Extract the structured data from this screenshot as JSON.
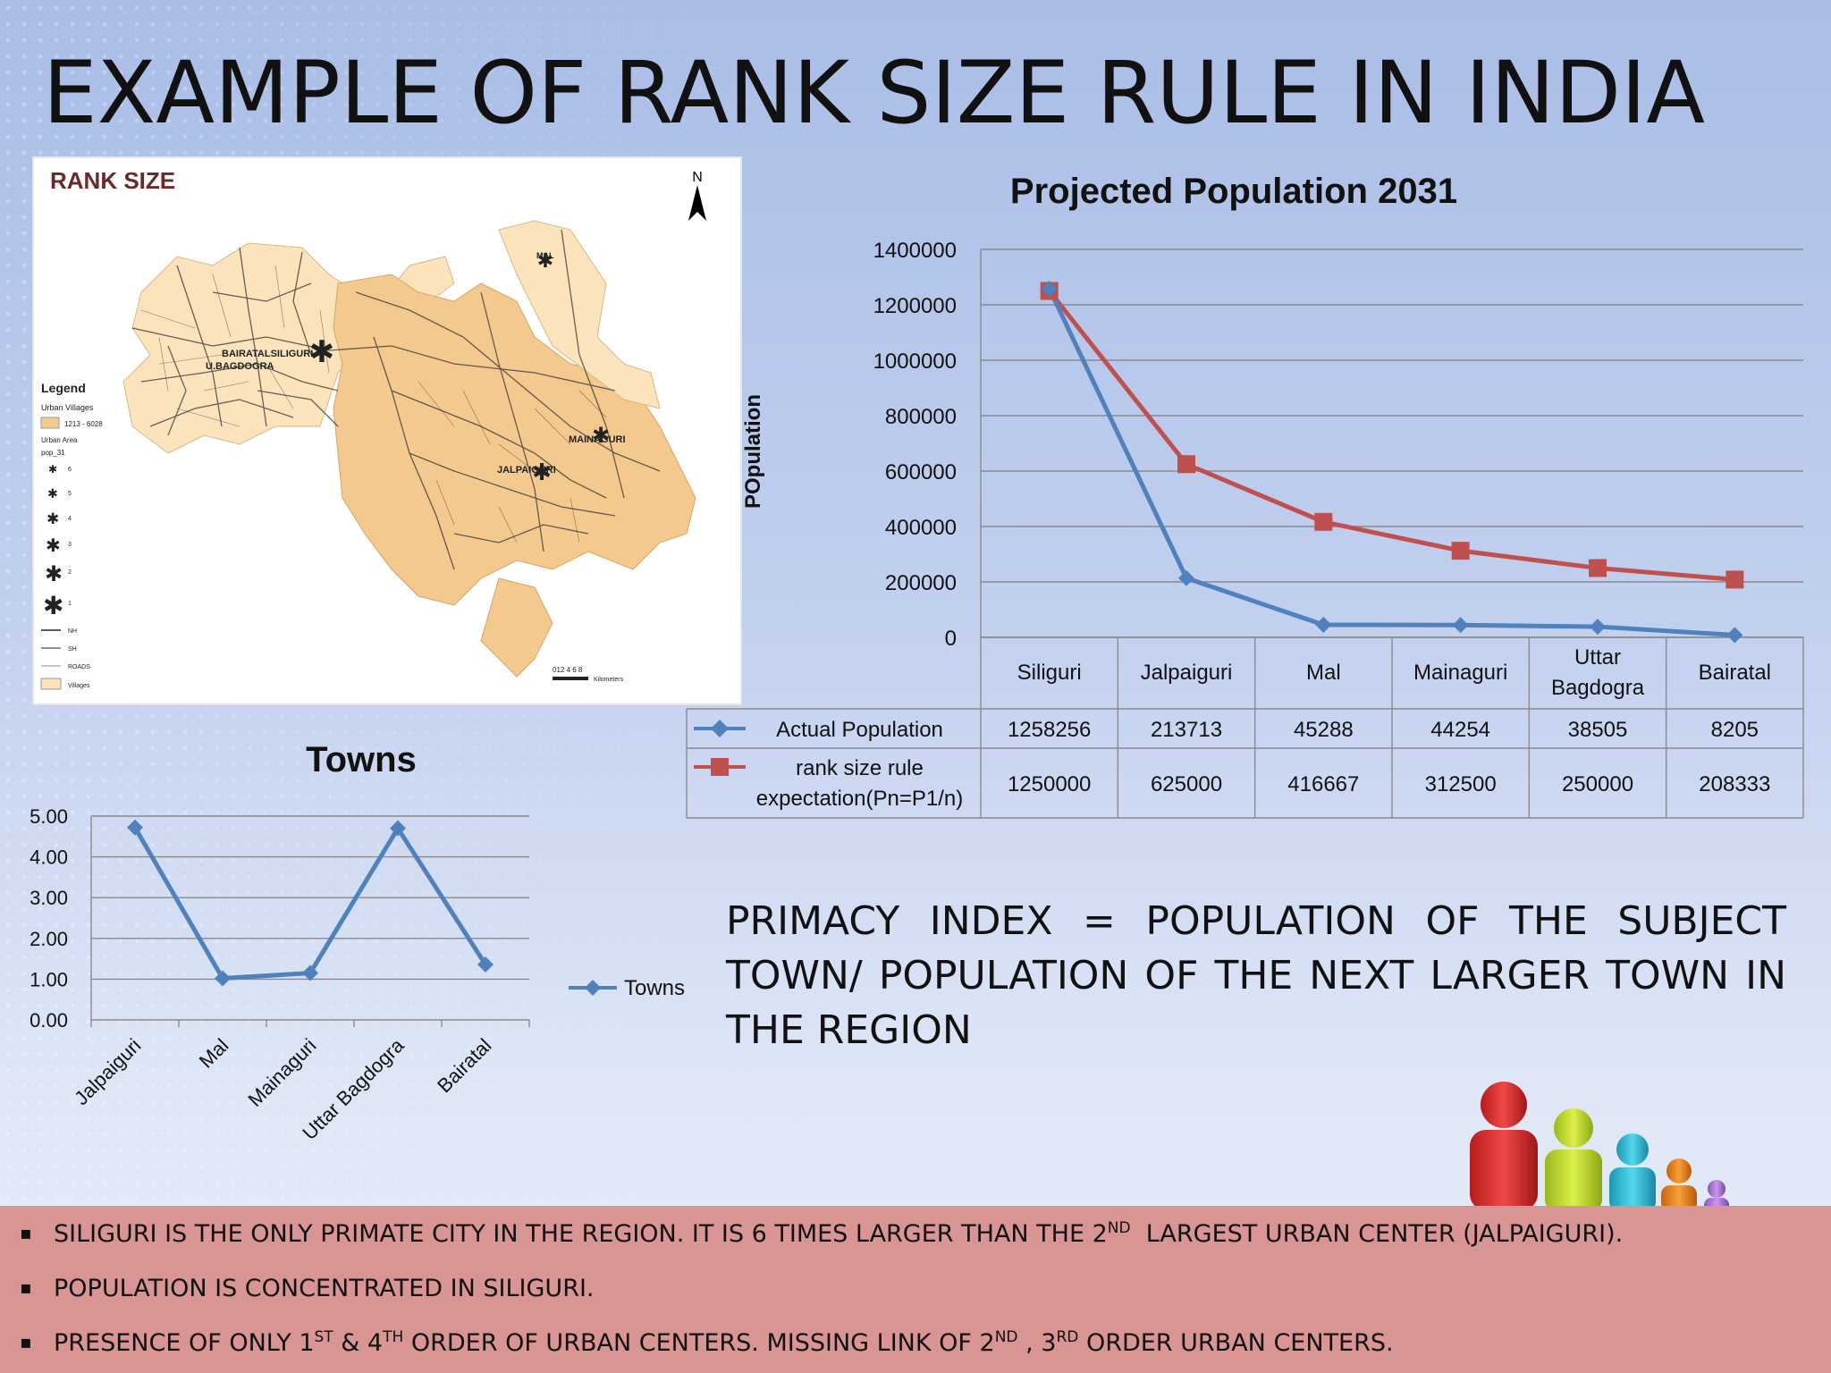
{
  "title": "EXAMPLE OF RANK SIZE RULE IN INDIA",
  "map": {
    "title": "RANK SIZE",
    "north": "N",
    "legend_title": "Legend",
    "legend_items": [
      "Urban Villages",
      "1213 - 6028",
      "Urban Area",
      "pop_31",
      "6",
      "5",
      "4",
      "3",
      "2",
      "1",
      "NH",
      "SH",
      "ROADS",
      "Villages"
    ],
    "labels": [
      "BAIRATALSILIGURI",
      "U.BAGDOGRA",
      "MAL",
      "MAINAGURI",
      "JALPAIGURI"
    ],
    "scale_text": "012 4 6 8",
    "scale_unit": "Kilometers",
    "colors": {
      "urban_fill": "#f4c98d",
      "village_fill": "#fbe3bc",
      "roads": "#333333"
    }
  },
  "chart_data": [
    {
      "type": "line",
      "title": "Projected Population 2031",
      "ylabel": "POpulation",
      "xlabel": "",
      "categories": [
        "Siliguri",
        "Jalpaiguri",
        "Mal",
        "Mainaguri",
        "Uttar Bagdogra",
        "Bairatal"
      ],
      "series": [
        {
          "name": "Actual Population",
          "values": [
            1258256,
            213713,
            45288,
            44254,
            38505,
            8205
          ],
          "color": "#4f81bd",
          "marker": "diamond"
        },
        {
          "name": "rank size rule expectation(Pn=P1/n)",
          "values": [
            1250000,
            625000,
            416667,
            312500,
            250000,
            208333
          ],
          "color": "#c0504d",
          "marker": "square"
        }
      ],
      "ylim": [
        0,
        1400000
      ],
      "yticks": [
        0,
        200000,
        400000,
        600000,
        800000,
        1000000,
        1200000,
        1400000
      ],
      "grid": true,
      "data_table": true,
      "legend": "in data table"
    },
    {
      "type": "line",
      "title": "Towns",
      "categories": [
        "Jalpaiguri",
        "Mal",
        "Mainaguri",
        "Uttar Bagdogra",
        "Bairatal"
      ],
      "series": [
        {
          "name": "Towns",
          "values": [
            4.72,
            1.02,
            1.15,
            4.7,
            1.36
          ],
          "color": "#4f81bd",
          "marker": "diamond"
        }
      ],
      "ylim": [
        0,
        5
      ],
      "yticks": [
        "0.00",
        "1.00",
        "2.00",
        "3.00",
        "4.00",
        "5.00"
      ],
      "grid": true,
      "legend": "right"
    }
  ],
  "formula": "PRIMACY INDEX = POPULATION OF THE SUBJECT TOWN/ POPULATION OF THE NEXT LARGER TOWN IN THE REGION",
  "bullets": [
    {
      "text": "SILIGURI IS THE ONLY PRIMATE CITY IN THE REGION. IT IS 6 TIMES LARGER THAN THE 2",
      "sup": "ND",
      "rest": "  LARGEST URBAN CENTER (JALPAIGURI)."
    },
    {
      "text": "POPULATION IS CONCENTRATED IN SILIGURI."
    },
    {
      "p1": "PRESENCE OF ONLY 1",
      "s1": "ST",
      "p2": " & 4",
      "s2": "TH",
      "p3": " ORDER OF URBAN CENTERS. MISSING LINK OF 2",
      "s3": "ND",
      "p4": " , 3",
      "s4": "RD",
      "p5": " ORDER URBAN CENTERS."
    }
  ],
  "bullet_marker": "▪",
  "colors": {
    "band": "#d99593",
    "people": [
      "#e83a3a",
      "#c9e23a",
      "#3ac3dc",
      "#f08a1a",
      "#b07ad8"
    ]
  }
}
